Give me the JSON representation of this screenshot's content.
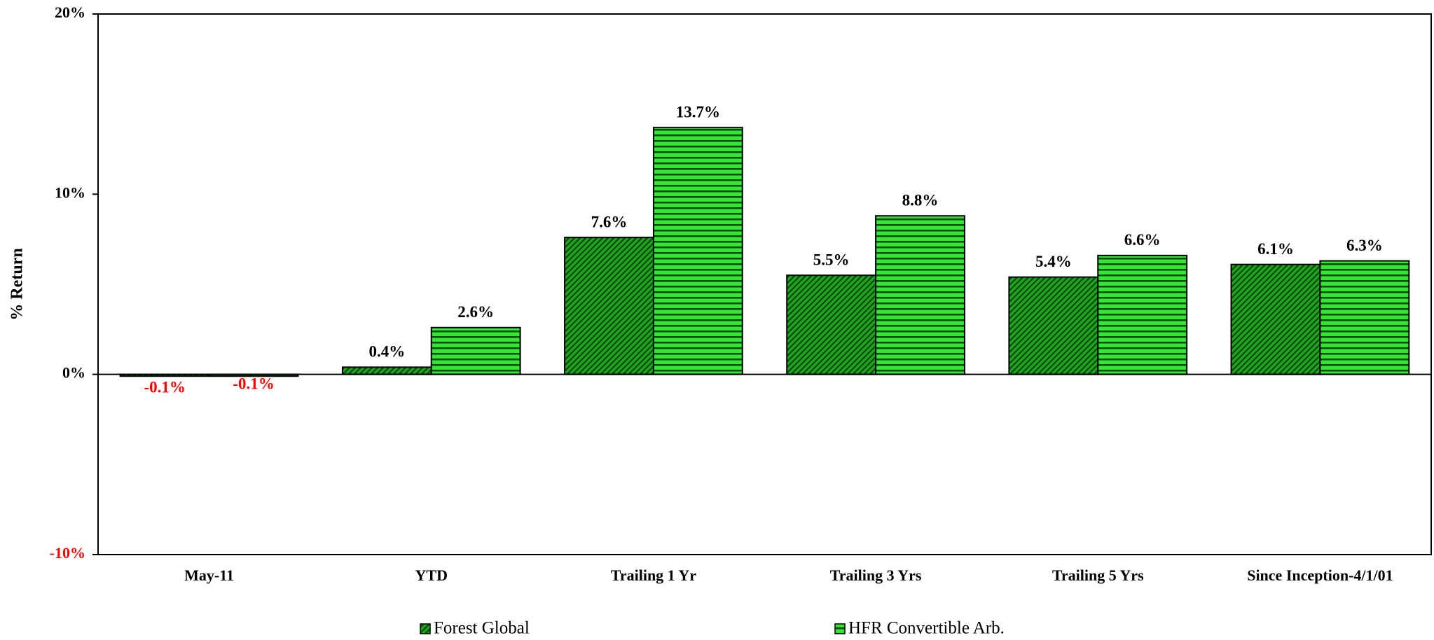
{
  "chart_data": {
    "type": "bar",
    "y_axis_label": "% Return",
    "categories": [
      "May-11",
      "YTD",
      "Trailing 1 Yr",
      "Trailing 3 Yrs",
      "Trailing 5 Yrs",
      "Since Inception-4/1/01"
    ],
    "series": [
      {
        "name": "Forest Global",
        "color": "#1fa61f",
        "pattern": "diagonal",
        "values": [
          -0.1,
          0.4,
          7.6,
          5.5,
          5.4,
          6.1
        ],
        "value_labels": [
          "-0.1%",
          "0.4%",
          "7.6%",
          "5.5%",
          "5.4%",
          "6.1%"
        ]
      },
      {
        "name": "HFR Convertible Arb.",
        "color": "#33e633",
        "pattern": "horizontal",
        "values": [
          -0.1,
          2.6,
          13.7,
          8.8,
          6.6,
          6.3
        ],
        "value_labels": [
          "-0.1%",
          "2.6%",
          "13.7%",
          "8.8%",
          "6.6%",
          "6.3%"
        ]
      }
    ],
    "negative_label_color": "#ff0000",
    "ylim": [
      -10,
      20
    ],
    "yticks": [
      {
        "value": -10,
        "label": "-10%"
      },
      {
        "value": 0,
        "label": "0%"
      },
      {
        "value": 10,
        "label": "10%"
      },
      {
        "value": 20,
        "label": "20%"
      }
    ],
    "legend": "bottom"
  }
}
